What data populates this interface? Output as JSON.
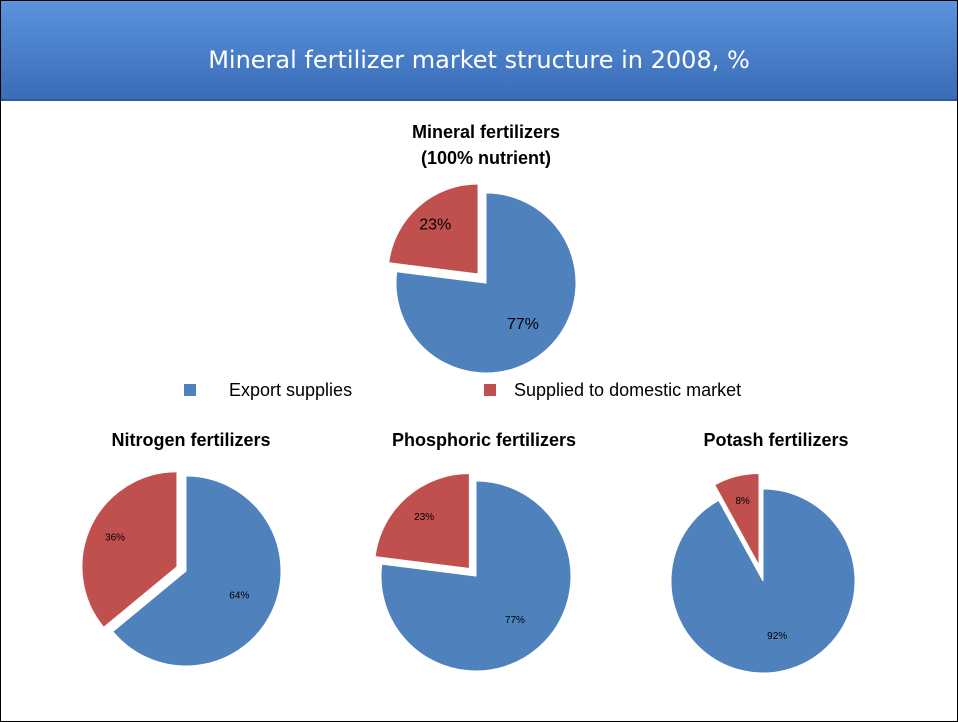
{
  "header": {
    "title": "Mineral fertilizer market structure in 2008, %"
  },
  "chart_data": [
    {
      "type": "pie",
      "title": [
        "Mineral fertilizers",
        "(100% nutrient)"
      ],
      "categories": [
        "Export supplies",
        "Supplied to domestic market"
      ],
      "values": [
        77,
        23
      ],
      "value_labels": [
        "77%",
        "23%"
      ],
      "colors": [
        "#4f81bd",
        "#c0504d"
      ]
    },
    {
      "type": "pie",
      "title": "Nitrogen fertilizers",
      "values": [
        64,
        36
      ],
      "value_labels": [
        "64%",
        "36%"
      ],
      "colors": [
        "#4f81bd",
        "#c0504d"
      ]
    },
    {
      "type": "pie",
      "title": "Phosphoric fertilizers",
      "values": [
        77,
        23
      ],
      "value_labels": [
        "77%",
        "23%"
      ],
      "colors": [
        "#4f81bd",
        "#c0504d"
      ]
    },
    {
      "type": "pie",
      "title": "Potash fertilizers",
      "values": [
        92,
        8
      ],
      "value_labels": [
        "92%",
        "8%"
      ],
      "colors": [
        "#4f81bd",
        "#c0504d"
      ]
    }
  ]
}
